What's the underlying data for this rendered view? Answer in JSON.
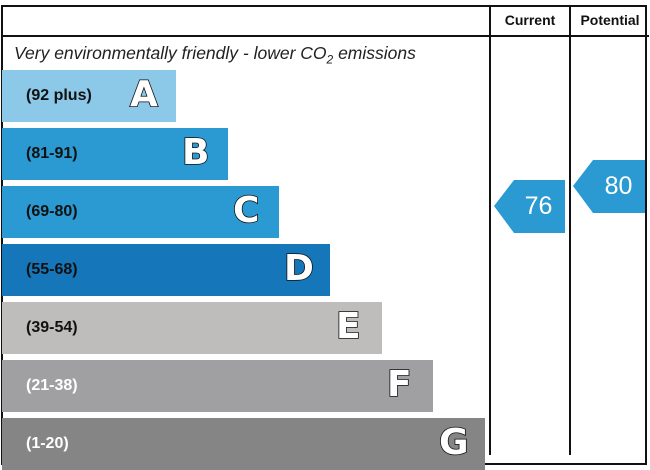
{
  "chart_data": {
    "type": "bar",
    "title": "",
    "header": {
      "current": "Current",
      "potential": "Potential"
    },
    "subtitle_pre": "Very environmentally friendly - lower CO",
    "subtitle_sub": "2",
    "subtitle_post": " emissions",
    "bands": [
      {
        "letter": "A",
        "range": "(92 plus)",
        "color": "#8cc8e8",
        "text_color": "#111111"
      },
      {
        "letter": "B",
        "range": "(81-91)",
        "color": "#2b9ad3",
        "text_color": "#111111"
      },
      {
        "letter": "C",
        "range": "(69-80)",
        "color": "#2b9ad3",
        "text_color": "#111111"
      },
      {
        "letter": "D",
        "range": "(55-68)",
        "color": "#1676ba",
        "text_color": "#111111"
      },
      {
        "letter": "E",
        "range": "(39-54)",
        "color": "#bebdbb",
        "text_color": "#111111"
      },
      {
        "letter": "F",
        "range": "(21-38)",
        "color": "#a0a0a2",
        "text_color": "#ffffff"
      },
      {
        "letter": "G",
        "range": "(1-20)",
        "color": "#858585",
        "text_color": "#ffffff"
      }
    ],
    "current": {
      "value": 76,
      "band": "C",
      "color": "#2b9ad3"
    },
    "potential": {
      "value": 80,
      "band": "C",
      "color": "#2b9ad3"
    }
  }
}
